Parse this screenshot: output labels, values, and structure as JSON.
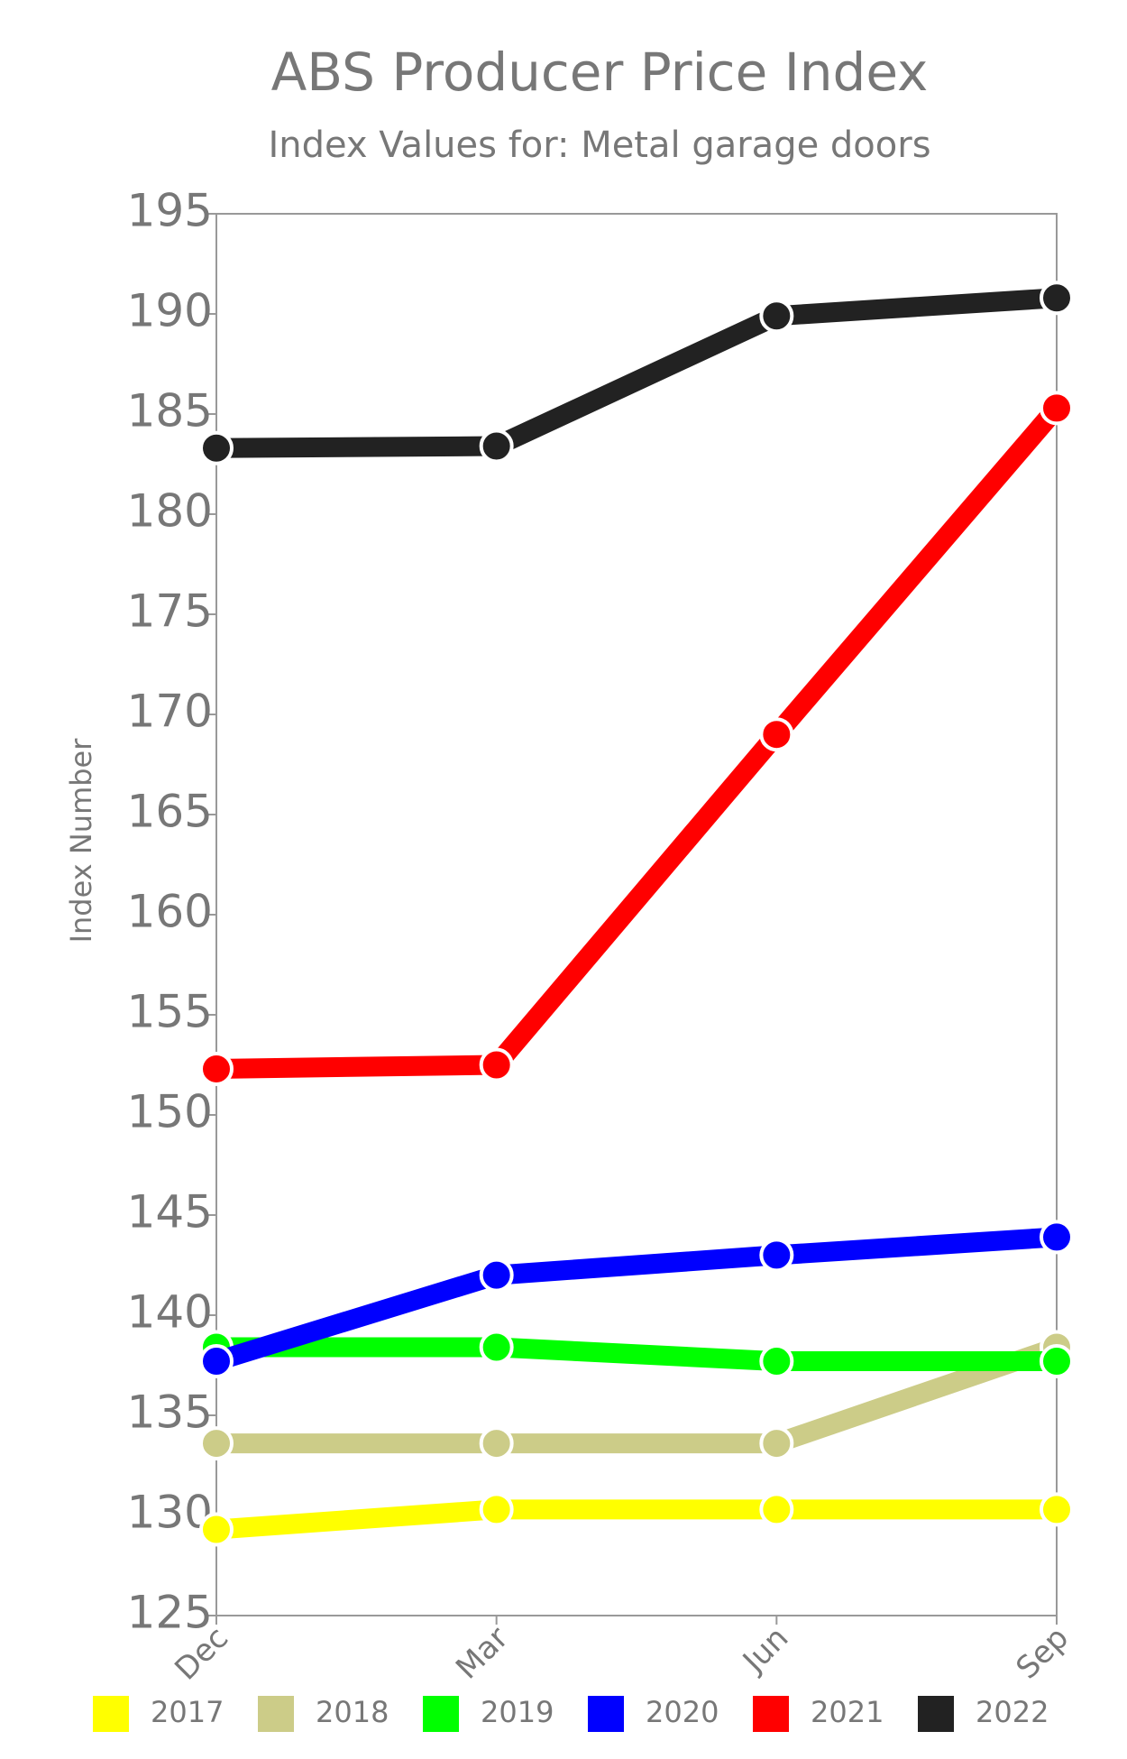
{
  "chart_data": {
    "type": "line",
    "title": "ABS Producer Price Index",
    "subtitle": "Index Values for: Metal garage doors",
    "y_label": "Index Number",
    "categories": [
      "Dec",
      "Mar",
      "Jun",
      "Sep"
    ],
    "series": [
      {
        "name": "2017",
        "color": "#ffff00",
        "values": [
          129.3,
          130.3,
          130.3,
          130.3
        ]
      },
      {
        "name": "2018",
        "color": "#cccc88",
        "values": [
          133.6,
          133.6,
          133.6,
          138.4
        ]
      },
      {
        "name": "2019",
        "color": "#00ff00",
        "values": [
          138.4,
          138.4,
          137.7,
          137.7
        ]
      },
      {
        "name": "2020",
        "color": "#0000ff",
        "values": [
          137.7,
          142.0,
          143.0,
          143.9
        ]
      },
      {
        "name": "2021",
        "color": "#ff0000",
        "values": [
          152.3,
          152.5,
          169.0,
          185.3
        ]
      },
      {
        "name": "2022",
        "color": "#222222",
        "values": [
          183.3,
          183.4,
          189.9,
          190.8
        ]
      }
    ],
    "ylim": [
      125,
      195
    ],
    "yticks": [
      125,
      130,
      135,
      140,
      145,
      150,
      155,
      160,
      165,
      170,
      175,
      180,
      185,
      190,
      195
    ]
  }
}
